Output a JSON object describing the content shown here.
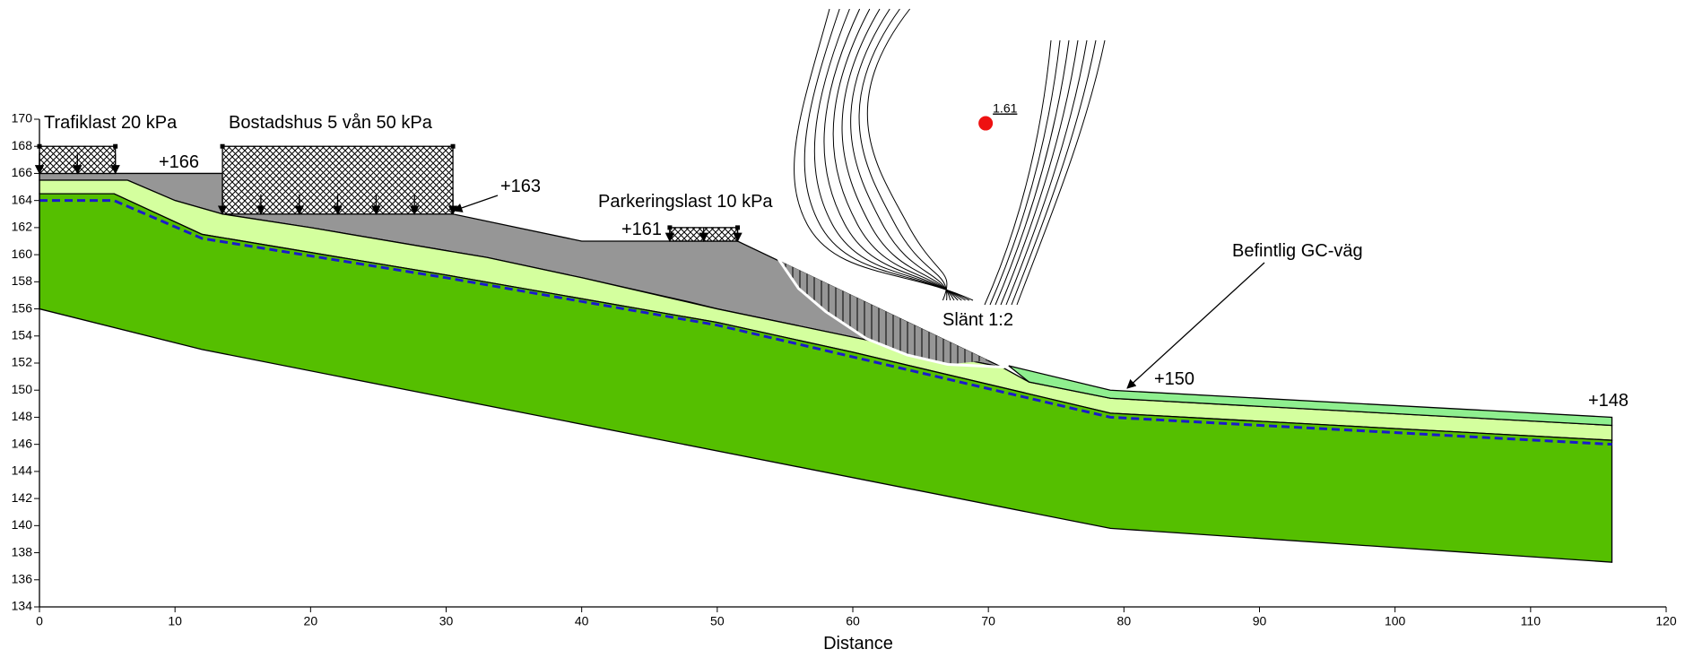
{
  "chart_data": {
    "type": "cross-section",
    "xlabel": "Distance",
    "xlim": [
      0,
      120
    ],
    "ylim": [
      134,
      170
    ],
    "xticks": [
      0,
      10,
      20,
      30,
      40,
      50,
      60,
      70,
      80,
      90,
      100,
      110,
      120
    ],
    "yticks": [
      134,
      136,
      138,
      140,
      142,
      144,
      146,
      148,
      150,
      152,
      154,
      156,
      158,
      160,
      162,
      164,
      166,
      168,
      170
    ],
    "layers": [
      {
        "color": "#969696",
        "x": [
          0,
          13.5,
          13.5,
          30.5,
          40,
          51.5,
          71,
          62,
          50,
          48,
          40,
          33,
          30,
          20,
          13.5,
          10,
          6.5,
          0
        ],
        "values": [
          166,
          166,
          163,
          163,
          161,
          161,
          151.7,
          153.5,
          156,
          156.5,
          158.3,
          159.8,
          160.3,
          162,
          163,
          164,
          165.5,
          165.5
        ]
      },
      {
        "color": "#d4ff9e",
        "x": [
          0,
          6.5,
          10,
          13.5,
          20,
          30,
          33,
          40,
          50,
          62,
          71,
          73,
          79,
          116,
          116,
          79,
          60,
          50,
          30,
          12,
          5.5,
          0
        ],
        "values": [
          165.5,
          165.5,
          164,
          163,
          162,
          160.3,
          159.8,
          158.3,
          156,
          153.5,
          151.7,
          150.6,
          149.4,
          147.4,
          146.3,
          148.3,
          152.8,
          155,
          158.5,
          161.5,
          164.5,
          164.5
        ]
      },
      {
        "color": "#55bf00",
        "x": [
          0,
          5.5,
          12,
          30,
          50,
          60,
          79,
          116,
          116,
          79,
          12,
          0
        ],
        "values": [
          164.5,
          164.5,
          161.5,
          158.5,
          155,
          152.8,
          148.3,
          146.3,
          137.3,
          139.8,
          153,
          156
        ]
      },
      {
        "color": "#8fef8f",
        "x": [
          71.5,
          79,
          116,
          116,
          79,
          73
        ],
        "values": [
          151.8,
          150,
          148,
          147.4,
          149.4,
          150.6
        ]
      }
    ],
    "failure_wedge": {
      "x": [
        54.5,
        70,
        67,
        64,
        61,
        58,
        56
      ],
      "values": [
        159.6,
        152.2,
        151.9,
        152.6,
        153.8,
        155.8,
        157.5
      ]
    },
    "slip_surface": {
      "color": "#ffffff",
      "x": [
        54.5,
        56,
        58,
        61,
        64,
        67,
        71.2
      ],
      "values": [
        159.7,
        157.5,
        155.8,
        153.8,
        152.6,
        151.9,
        151.7
      ]
    },
    "water_table": {
      "color": "#1a1acc",
      "x": [
        0,
        5.5,
        12,
        30,
        50,
        79,
        116
      ],
      "values": [
        164,
        164,
        161.2,
        158.3,
        154.8,
        148,
        146
      ]
    },
    "loads": [
      {
        "label": "Trafiklast 20 kPa",
        "x": [
          0,
          5.6
        ],
        "values": [
          166,
          168
        ]
      },
      {
        "label": "Bostadshus 5 vån 50 kPa",
        "x": [
          13.5,
          30.5
        ],
        "values": [
          163,
          168
        ]
      },
      {
        "label": "Parkeringslast 10 kPa",
        "x": [
          46.5,
          51.5
        ],
        "values": [
          161,
          162
        ]
      }
    ],
    "elevation_labels": [
      "+166",
      "+163",
      "+161",
      "+150",
      "+148"
    ],
    "annotations": [
      "Befintlig GC-väg",
      "Slänt 1:2"
    ],
    "critical_center": {
      "x": 69.8,
      "y": 169.7,
      "color": "#ee1111",
      "label": "1.61"
    }
  }
}
